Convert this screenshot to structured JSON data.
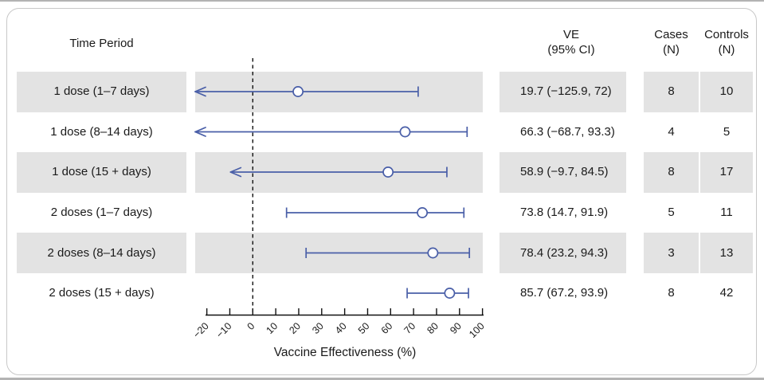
{
  "header": {
    "time_period": "Time Period",
    "ve": [
      "VE",
      "(95% CI)"
    ],
    "cases": [
      "Cases",
      "(N)"
    ],
    "controls": [
      "Controls",
      "(N)"
    ]
  },
  "colors": {
    "marker_blue": "#4a5fa8",
    "band_gray": "#e3e3e3",
    "card_border": "#c8c8c8",
    "axis_black": "#111111",
    "text": "#1a1a1a"
  },
  "chart_data": {
    "type": "forest",
    "xlabel": "Vaccine Effectiveness (%)",
    "xlim": [
      -20,
      100
    ],
    "x_ticks": [
      -20,
      -10,
      0,
      10,
      20,
      30,
      40,
      50,
      60,
      70,
      80,
      90,
      100
    ],
    "x_tick_labels": [
      "−20",
      "−10",
      "0",
      "10",
      "20",
      "30",
      "40",
      "50",
      "60",
      "70",
      "80",
      "90",
      "100"
    ],
    "reference_line_x": 0,
    "grid": "off",
    "legend": "none",
    "rows": [
      {
        "label": "1 dose (1–7 days)",
        "ve": 19.7,
        "ci": [
          -125.9,
          72
        ],
        "ve_ci_text": "19.7 (−125.9, 72)",
        "cases": "8",
        "controls": "10",
        "lower_arrow": true
      },
      {
        "label": "1 dose (8–14 days)",
        "ve": 66.3,
        "ci": [
          -68.7,
          93.3
        ],
        "ve_ci_text": "66.3 (−68.7, 93.3)",
        "cases": "4",
        "controls": "5",
        "lower_arrow": true
      },
      {
        "label": "1 dose (15 + days)",
        "ve": 58.9,
        "ci": [
          -9.7,
          84.5
        ],
        "ve_ci_text": "58.9 (−9.7, 84.5)",
        "cases": "8",
        "controls": "17",
        "lower_arrow": true
      },
      {
        "label": "2 doses (1–7 days)",
        "ve": 73.8,
        "ci": [
          14.7,
          91.9
        ],
        "ve_ci_text": "73.8 (14.7, 91.9)",
        "cases": "5",
        "controls": "11",
        "lower_arrow": false
      },
      {
        "label": "2 doses (8–14 days)",
        "ve": 78.4,
        "ci": [
          23.2,
          94.3
        ],
        "ve_ci_text": "78.4 (23.2, 94.3)",
        "cases": "3",
        "controls": "13",
        "lower_arrow": false
      },
      {
        "label": "2 doses (15 + days)",
        "ve": 85.7,
        "ci": [
          67.2,
          93.9
        ],
        "ve_ci_text": "85.7 (67.2, 93.9)",
        "cases": "8",
        "controls": "42",
        "lower_arrow": false
      }
    ]
  }
}
